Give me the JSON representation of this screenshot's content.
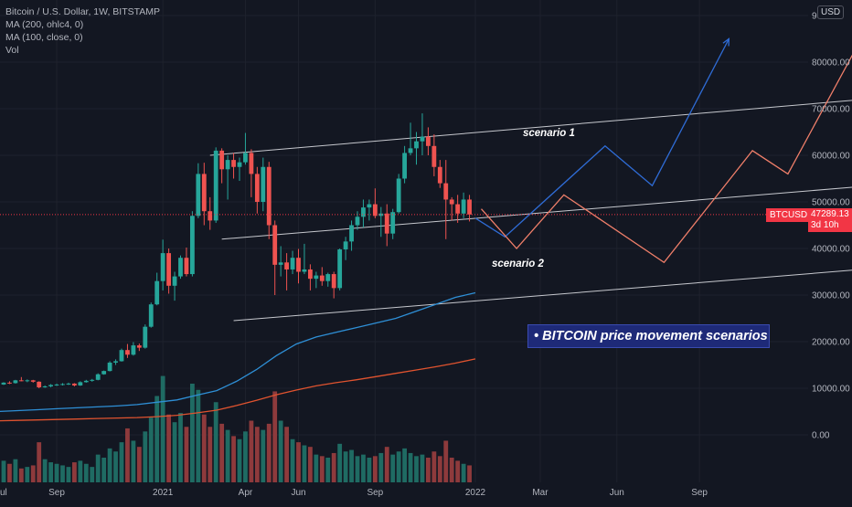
{
  "legend": {
    "title": "Bitcoin / U.S. Dollar, 1W, BITSTAMP",
    "ma200": "MA (200, ohlc4, 0)",
    "ma100": "MA (100, close, 0)",
    "vol": "Vol"
  },
  "currency_badge": "USD",
  "headline": "• BITCOIN price movement scenarios",
  "annotations": {
    "scenario1": "scenario 1",
    "scenario2": "scenario 2"
  },
  "price_tag": {
    "symbol": "BTCUSD",
    "price": "47289.13",
    "countdown": "3d 10h"
  },
  "colors": {
    "background": "#131722",
    "up": "#26a69a",
    "down": "#ef5350",
    "vol_up": "#1f6b63",
    "vol_down": "#8e3a3c",
    "ma200": "#e0532f",
    "ma100": "#2e8fd6",
    "scenario1": "#2f6cd6",
    "scenario2": "#f07f6a",
    "channel": "#c6c8ce",
    "badge": "#1e2a78",
    "price_tag": "#f23645"
  },
  "chart_data": {
    "type": "candlestick",
    "symbol": "Bitcoin / U.S. Dollar",
    "timeframe": "1W",
    "exchange": "BITSTAMP",
    "y_axis_labels": [
      "0.00",
      "10000.00",
      "20000.00",
      "30000.00",
      "40000.00",
      "50000.00",
      "60000.00",
      "70000.00",
      "80000.00",
      "90"
    ],
    "ylim": [
      -10000,
      91000
    ],
    "x_axis_labels": [
      "ul",
      "Sep",
      "2021",
      "Apr",
      "Jun",
      "Sep",
      "2022",
      "Mar",
      "Jun",
      "Sep"
    ],
    "current_price": 47289.13,
    "candles": [
      [
        10800,
        11300,
        10700,
        11200
      ],
      [
        11200,
        11500,
        10900,
        11100
      ],
      [
        11100,
        11800,
        11000,
        11700
      ],
      [
        11700,
        12400,
        11500,
        11600
      ],
      [
        11600,
        11900,
        11300,
        11700
      ],
      [
        11700,
        11800,
        11200,
        11400
      ],
      [
        11400,
        11500,
        10000,
        10200
      ],
      [
        10200,
        10600,
        10100,
        10400
      ],
      [
        10400,
        10900,
        10200,
        10700
      ],
      [
        10700,
        11000,
        10500,
        10800
      ],
      [
        10800,
        11100,
        10600,
        10900
      ],
      [
        10900,
        11200,
        10700,
        11000
      ],
      [
        11000,
        11100,
        10400,
        10600
      ],
      [
        10600,
        11500,
        10500,
        11300
      ],
      [
        11300,
        11800,
        11200,
        11600
      ],
      [
        11600,
        12000,
        11400,
        11800
      ],
      [
        11800,
        13200,
        11700,
        13000
      ],
      [
        13000,
        13800,
        12900,
        13700
      ],
      [
        13700,
        15800,
        13600,
        15500
      ],
      [
        15500,
        16200,
        15000,
        15800
      ],
      [
        15800,
        18500,
        15700,
        18200
      ],
      [
        18200,
        19500,
        16500,
        17200
      ],
      [
        17200,
        19900,
        17000,
        19200
      ],
      [
        19200,
        19600,
        18000,
        18700
      ],
      [
        18700,
        23700,
        18500,
        23200
      ],
      [
        23200,
        28400,
        23000,
        28000
      ],
      [
        28000,
        34800,
        27800,
        33000
      ],
      [
        33000,
        41900,
        31000,
        39000
      ],
      [
        39000,
        40000,
        30300,
        32000
      ],
      [
        32000,
        35000,
        28800,
        34000
      ],
      [
        34000,
        38500,
        33500,
        38000
      ],
      [
        38000,
        40200,
        34000,
        34500
      ],
      [
        34500,
        48000,
        34000,
        47000
      ],
      [
        47000,
        58300,
        46500,
        56000
      ],
      [
        56000,
        58400,
        45000,
        48000
      ],
      [
        48000,
        51000,
        44000,
        46000
      ],
      [
        46000,
        61700,
        45500,
        61000
      ],
      [
        61000,
        61500,
        54000,
        57000
      ],
      [
        57000,
        60000,
        50500,
        59000
      ],
      [
        59000,
        60500,
        55000,
        57500
      ],
      [
        57500,
        59500,
        54500,
        58500
      ],
      [
        58500,
        64800,
        58000,
        60500
      ],
      [
        60500,
        61300,
        51000,
        56000
      ],
      [
        56000,
        57500,
        47500,
        50000
      ],
      [
        50000,
        59500,
        48000,
        57500
      ],
      [
        57500,
        58600,
        42000,
        45000
      ],
      [
        45000,
        46000,
        30000,
        36500
      ],
      [
        36500,
        40500,
        34000,
        37000
      ],
      [
        37000,
        39000,
        31000,
        35500
      ],
      [
        35500,
        39500,
        34500,
        38000
      ],
      [
        38000,
        39900,
        32500,
        35000
      ],
      [
        35000,
        41000,
        34500,
        35500
      ],
      [
        35500,
        36600,
        31000,
        33500
      ],
      [
        33500,
        35000,
        31500,
        34200
      ],
      [
        34200,
        36000,
        32000,
        33000
      ],
      [
        33000,
        34800,
        31800,
        34500
      ],
      [
        34500,
        35000,
        29300,
        31500
      ],
      [
        31500,
        40000,
        31000,
        39800
      ],
      [
        39800,
        42500,
        37500,
        41500
      ],
      [
        41500,
        46000,
        39500,
        45000
      ],
      [
        45000,
        48000,
        44000,
        46800
      ],
      [
        46800,
        50500,
        44500,
        48800
      ],
      [
        48800,
        50500,
        46000,
        49500
      ],
      [
        49500,
        52900,
        46500,
        47000
      ],
      [
        47000,
        48900,
        42500,
        47500
      ],
      [
        47500,
        49500,
        40500,
        43200
      ],
      [
        43200,
        48500,
        42000,
        47800
      ],
      [
        47800,
        56000,
        47500,
        55000
      ],
      [
        55000,
        62000,
        54000,
        60500
      ],
      [
        60500,
        67000,
        60000,
        61500
      ],
      [
        61500,
        65000,
        58000,
        63000
      ],
      [
        63000,
        69000,
        60000,
        64000
      ],
      [
        64000,
        66000,
        60000,
        62000
      ],
      [
        62000,
        64500,
        55500,
        57500
      ],
      [
        57500,
        59000,
        53000,
        54000
      ],
      [
        54000,
        59000,
        42000,
        50500
      ],
      [
        50500,
        51000,
        46000,
        49500
      ],
      [
        49500,
        51500,
        45500,
        47500
      ],
      [
        47500,
        52000,
        46500,
        50500
      ],
      [
        50500,
        51500,
        45800,
        47289
      ]
    ],
    "volume_range": [
      0,
      800000
    ],
    "volume": [
      140000,
      120000,
      150000,
      90000,
      100000,
      110000,
      260000,
      150000,
      130000,
      120000,
      110000,
      100000,
      130000,
      140000,
      120000,
      100000,
      180000,
      160000,
      220000,
      200000,
      260000,
      350000,
      270000,
      230000,
      330000,
      420000,
      560000,
      690000,
      440000,
      390000,
      450000,
      360000,
      640000,
      600000,
      440000,
      360000,
      520000,
      380000,
      340000,
      300000,
      280000,
      330000,
      400000,
      360000,
      340000,
      380000,
      590000,
      400000,
      360000,
      280000,
      260000,
      240000,
      230000,
      180000,
      170000,
      160000,
      190000,
      250000,
      200000,
      210000,
      170000,
      180000,
      160000,
      170000,
      190000,
      230000,
      180000,
      200000,
      220000,
      190000,
      170000,
      180000,
      160000,
      200000,
      170000,
      270000,
      160000,
      140000,
      120000,
      110000
    ],
    "ma100": [
      5000,
      5200,
      5400,
      5600,
      5800,
      6000,
      6200,
      6500,
      7000,
      7500,
      8500,
      9500,
      11500,
      14000,
      17000,
      19500,
      21000,
      22000,
      23000,
      24000,
      25000,
      26500,
      28000,
      29500,
      30500
    ],
    "ma200": [
      3000,
      3100,
      3200,
      3300,
      3400,
      3500,
      3600,
      3700,
      3900,
      4200,
      4700,
      5300,
      6300,
      7400,
      8600,
      9600,
      10500,
      11200,
      11800,
      12500,
      13200,
      13900,
      14600,
      15400,
      16300
    ],
    "channels": [
      {
        "x0_index": 35,
        "y0": 60000,
        "x1_index": 155,
        "y1": 73000
      },
      {
        "x0_index": 37,
        "y0": 42000,
        "x1_index": 157,
        "y1": 54500
      },
      {
        "x0_index": 39,
        "y0": 24500,
        "x1_index": 160,
        "y1": 37000
      }
    ],
    "scenarios": [
      {
        "name": "scenario 1",
        "points": [
          [
            80,
            46500
          ],
          [
            85,
            42500
          ],
          [
            102,
            62000
          ],
          [
            110,
            53500
          ],
          [
            123,
            85000
          ]
        ]
      },
      {
        "name": "scenario 2",
        "points": [
          [
            81,
            48500
          ],
          [
            87,
            40000
          ],
          [
            95,
            51500
          ],
          [
            112,
            37000
          ],
          [
            127,
            61000
          ],
          [
            133,
            56000
          ],
          [
            145,
            84000
          ]
        ]
      }
    ]
  }
}
